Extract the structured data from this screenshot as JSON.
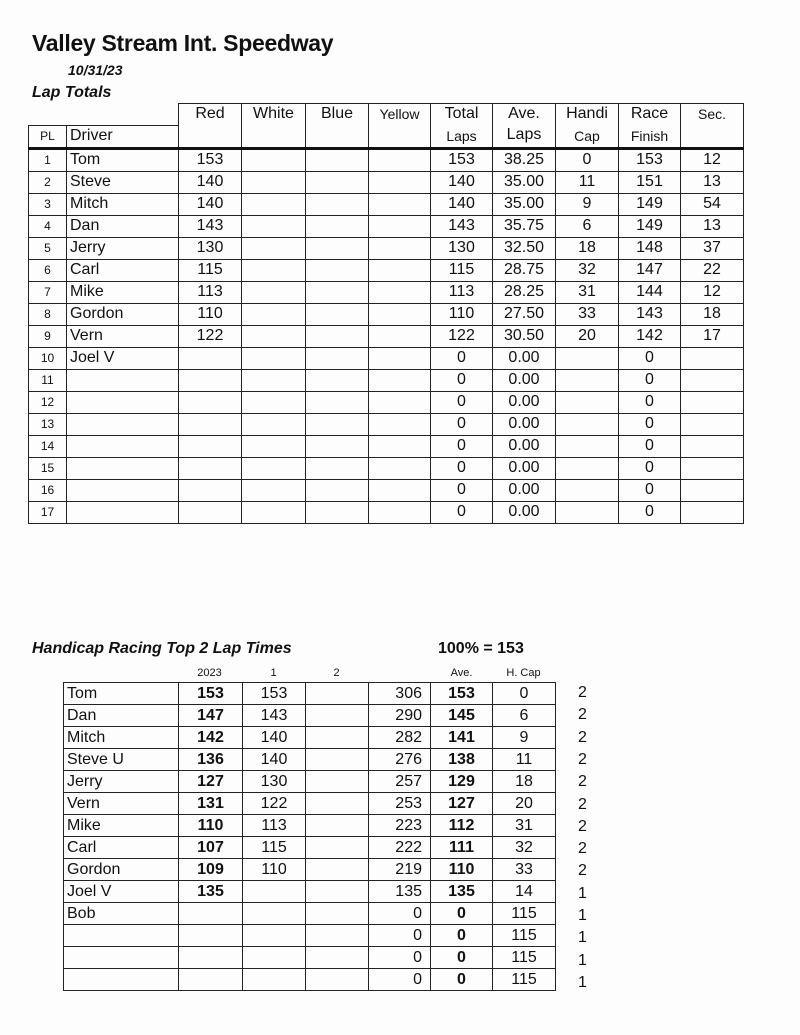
{
  "header": {
    "title": "Valley Stream Int. Speedway",
    "date": "10/31/23",
    "section": "Lap Totals"
  },
  "lap_totals": {
    "columns_top": [
      "Red",
      "White",
      "Blue",
      "Yellow",
      "Total",
      "Ave.",
      "Handi",
      "Race",
      "Sec."
    ],
    "columns_bottom": [
      "PL",
      "Driver",
      "Laps",
      "Laps",
      "Cap",
      "Finish"
    ],
    "rows": [
      {
        "pl": "1",
        "driver": "Tom",
        "red": "153",
        "white": "",
        "blue": "",
        "yellow": "",
        "total": "153",
        "ave": "38.25",
        "handicap": "0",
        "race_finish": "153",
        "sec": "12"
      },
      {
        "pl": "2",
        "driver": "Steve",
        "red": "140",
        "white": "",
        "blue": "",
        "yellow": "",
        "total": "140",
        "ave": "35.00",
        "handicap": "11",
        "race_finish": "151",
        "sec": "13"
      },
      {
        "pl": "3",
        "driver": "Mitch",
        "red": "140",
        "white": "",
        "blue": "",
        "yellow": "",
        "total": "140",
        "ave": "35.00",
        "handicap": "9",
        "race_finish": "149",
        "sec": "54"
      },
      {
        "pl": "4",
        "driver": "Dan",
        "red": "143",
        "white": "",
        "blue": "",
        "yellow": "",
        "total": "143",
        "ave": "35.75",
        "handicap": "6",
        "race_finish": "149",
        "sec": "13"
      },
      {
        "pl": "5",
        "driver": "Jerry",
        "red": "130",
        "white": "",
        "blue": "",
        "yellow": "",
        "total": "130",
        "ave": "32.50",
        "handicap": "18",
        "race_finish": "148",
        "sec": "37"
      },
      {
        "pl": "6",
        "driver": "Carl",
        "red": "115",
        "white": "",
        "blue": "",
        "yellow": "",
        "total": "115",
        "ave": "28.75",
        "handicap": "32",
        "race_finish": "147",
        "sec": "22"
      },
      {
        "pl": "7",
        "driver": "Mike",
        "red": "113",
        "white": "",
        "blue": "",
        "yellow": "",
        "total": "113",
        "ave": "28.25",
        "handicap": "31",
        "race_finish": "144",
        "sec": "12"
      },
      {
        "pl": "8",
        "driver": "Gordon",
        "red": "110",
        "white": "",
        "blue": "",
        "yellow": "",
        "total": "110",
        "ave": "27.50",
        "handicap": "33",
        "race_finish": "143",
        "sec": "18"
      },
      {
        "pl": "9",
        "driver": "Vern",
        "red": "122",
        "white": "",
        "blue": "",
        "yellow": "",
        "total": "122",
        "ave": "30.50",
        "handicap": "20",
        "race_finish": "142",
        "sec": "17"
      },
      {
        "pl": "10",
        "driver": "Joel V",
        "red": "",
        "white": "",
        "blue": "",
        "yellow": "",
        "total": "0",
        "ave": "0.00",
        "handicap": "",
        "race_finish": "0",
        "sec": ""
      },
      {
        "pl": "11",
        "driver": "",
        "red": "",
        "white": "",
        "blue": "",
        "yellow": "",
        "total": "0",
        "ave": "0.00",
        "handicap": "",
        "race_finish": "0",
        "sec": ""
      },
      {
        "pl": "12",
        "driver": "",
        "red": "",
        "white": "",
        "blue": "",
        "yellow": "",
        "total": "0",
        "ave": "0.00",
        "handicap": "",
        "race_finish": "0",
        "sec": ""
      },
      {
        "pl": "13",
        "driver": "",
        "red": "",
        "white": "",
        "blue": "",
        "yellow": "",
        "total": "0",
        "ave": "0.00",
        "handicap": "",
        "race_finish": "0",
        "sec": ""
      },
      {
        "pl": "14",
        "driver": "",
        "red": "",
        "white": "",
        "blue": "",
        "yellow": "",
        "total": "0",
        "ave": "0.00",
        "handicap": "",
        "race_finish": "0",
        "sec": ""
      },
      {
        "pl": "15",
        "driver": "",
        "red": "",
        "white": "",
        "blue": "",
        "yellow": "",
        "total": "0",
        "ave": "0.00",
        "handicap": "",
        "race_finish": "0",
        "sec": ""
      },
      {
        "pl": "16",
        "driver": "",
        "red": "",
        "white": "",
        "blue": "",
        "yellow": "",
        "total": "0",
        "ave": "0.00",
        "handicap": "",
        "race_finish": "0",
        "sec": ""
      },
      {
        "pl": "17",
        "driver": "",
        "red": "",
        "white": "",
        "blue": "",
        "yellow": "",
        "total": "0",
        "ave": "0.00",
        "handicap": "",
        "race_finish": "0",
        "sec": ""
      }
    ]
  },
  "handicap": {
    "title": "Handicap Racing Top 2 Lap Times",
    "formula": "100% = 153",
    "columns": [
      "2023",
      "1",
      "2",
      "Ave.",
      "H. Cap"
    ],
    "rows": [
      {
        "driver": "Tom",
        "y2023": "153",
        "lap1": "153",
        "lap2": "",
        "total": "306",
        "ave": "153",
        "hcap": "0",
        "count": "2"
      },
      {
        "driver": "Dan",
        "y2023": "147",
        "lap1": "143",
        "lap2": "",
        "total": "290",
        "ave": "145",
        "hcap": "6",
        "count": "2"
      },
      {
        "driver": "Mitch",
        "y2023": "142",
        "lap1": "140",
        "lap2": "",
        "total": "282",
        "ave": "141",
        "hcap": "9",
        "count": "2"
      },
      {
        "driver": "Steve U",
        "y2023": "136",
        "lap1": "140",
        "lap2": "",
        "total": "276",
        "ave": "138",
        "hcap": "11",
        "count": "2"
      },
      {
        "driver": "Jerry",
        "y2023": "127",
        "lap1": "130",
        "lap2": "",
        "total": "257",
        "ave": "129",
        "hcap": "18",
        "count": "2"
      },
      {
        "driver": "Vern",
        "y2023": "131",
        "lap1": "122",
        "lap2": "",
        "total": "253",
        "ave": "127",
        "hcap": "20",
        "count": "2"
      },
      {
        "driver": "Mike",
        "y2023": "110",
        "lap1": "113",
        "lap2": "",
        "total": "223",
        "ave": "112",
        "hcap": "31",
        "count": "2"
      },
      {
        "driver": "Carl",
        "y2023": "107",
        "lap1": "115",
        "lap2": "",
        "total": "222",
        "ave": "111",
        "hcap": "32",
        "count": "2"
      },
      {
        "driver": "Gordon",
        "y2023": "109",
        "lap1": "110",
        "lap2": "",
        "total": "219",
        "ave": "110",
        "hcap": "33",
        "count": "2"
      },
      {
        "driver": "Joel V",
        "y2023": "135",
        "lap1": "",
        "lap2": "",
        "total": "135",
        "ave": "135",
        "hcap": "14",
        "count": "1"
      },
      {
        "driver": "Bob",
        "y2023": "",
        "lap1": "",
        "lap2": "",
        "total": "0",
        "ave": "0",
        "hcap": "115",
        "count": "1"
      },
      {
        "driver": "",
        "y2023": "",
        "lap1": "",
        "lap2": "",
        "total": "0",
        "ave": "0",
        "hcap": "115",
        "count": "1"
      },
      {
        "driver": "",
        "y2023": "",
        "lap1": "",
        "lap2": "",
        "total": "0",
        "ave": "0",
        "hcap": "115",
        "count": "1"
      },
      {
        "driver": "",
        "y2023": "",
        "lap1": "",
        "lap2": "",
        "total": "0",
        "ave": "0",
        "hcap": "115",
        "count": "1"
      }
    ]
  }
}
